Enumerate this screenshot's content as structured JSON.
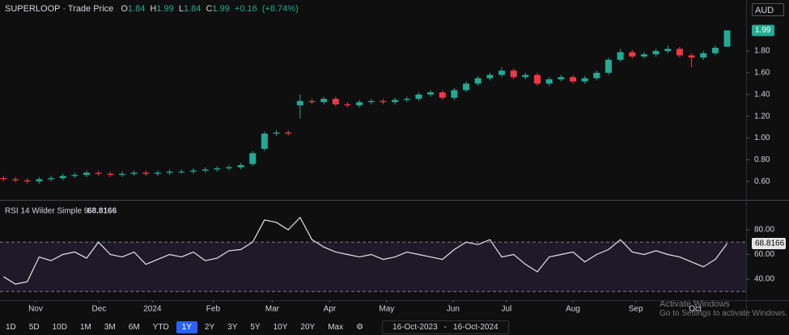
{
  "header": {
    "title": "SUPERLOOP · Trade Price",
    "o_label": "O",
    "open": 1.84,
    "h_label": "H",
    "high": 1.99,
    "l_label": "L",
    "low": 1.84,
    "c_label": "C",
    "close": 1.99,
    "change": "+0.16",
    "change_pct": "(+8.74%)"
  },
  "currency": "AUD",
  "chart_data": [
    {
      "type": "candlestick",
      "up_color": "#22ab94",
      "down_color": "#f23645",
      "xlim": [
        -0.3,
        62.6
      ],
      "ylim": [
        0.43,
        2.27
      ],
      "yticks": [
        {
          "value": 0.6,
          "label": "0.60"
        },
        {
          "value": 0.8,
          "label": "0.80"
        },
        {
          "value": 1,
          "label": "1.00"
        },
        {
          "value": 1.2,
          "label": "1.20"
        },
        {
          "value": 1.4,
          "label": "1.40"
        },
        {
          "value": 1.6,
          "label": "1.60"
        },
        {
          "value": 1.8,
          "label": "1.80"
        }
      ],
      "last_price": 1.99,
      "open": [
        0.63,
        0.62,
        0.61,
        0.6,
        0.62,
        0.63,
        0.65,
        0.66,
        0.68,
        0.67,
        0.66,
        0.67,
        0.68,
        0.67,
        0.68,
        0.69,
        0.69,
        0.7,
        0.71,
        0.72,
        0.73,
        0.76,
        0.9,
        1.04,
        1.05,
        1.3,
        1.34,
        1.33,
        1.36,
        1.31,
        1.3,
        1.33,
        1.34,
        1.33,
        1.35,
        1.36,
        1.4,
        1.42,
        1.37,
        1.44,
        1.5,
        1.55,
        1.58,
        1.62,
        1.56,
        1.58,
        1.5,
        1.54,
        1.56,
        1.52,
        1.55,
        1.6,
        1.72,
        1.79,
        1.75,
        1.77,
        1.8,
        1.82,
        1.76,
        1.74,
        1.78,
        1.84
      ],
      "high": [
        0.65,
        0.64,
        0.63,
        0.64,
        0.65,
        0.67,
        0.68,
        0.7,
        0.7,
        0.69,
        0.69,
        0.7,
        0.7,
        0.7,
        0.71,
        0.71,
        0.72,
        0.73,
        0.74,
        0.75,
        0.77,
        0.88,
        1.06,
        1.07,
        1.07,
        1.4,
        1.36,
        1.38,
        1.38,
        1.33,
        1.35,
        1.36,
        1.36,
        1.37,
        1.38,
        1.42,
        1.44,
        1.44,
        1.46,
        1.52,
        1.57,
        1.6,
        1.65,
        1.64,
        1.6,
        1.6,
        1.56,
        1.58,
        1.58,
        1.57,
        1.62,
        1.74,
        1.82,
        1.81,
        1.79,
        1.82,
        1.85,
        1.84,
        1.78,
        1.8,
        1.85,
        1.99
      ],
      "low": [
        0.6,
        0.59,
        0.58,
        0.58,
        0.6,
        0.61,
        0.63,
        0.64,
        0.65,
        0.64,
        0.64,
        0.65,
        0.65,
        0.65,
        0.66,
        0.67,
        0.67,
        0.68,
        0.69,
        0.7,
        0.71,
        0.74,
        0.88,
        1.02,
        1.02,
        1.18,
        1.31,
        1.31,
        1.29,
        1.28,
        1.28,
        1.31,
        1.31,
        1.31,
        1.33,
        1.34,
        1.38,
        1.35,
        1.35,
        1.42,
        1.48,
        1.53,
        1.56,
        1.54,
        1.54,
        1.48,
        1.48,
        1.52,
        1.5,
        1.5,
        1.53,
        1.58,
        1.7,
        1.73,
        1.73,
        1.75,
        1.78,
        1.74,
        1.65,
        1.72,
        1.76,
        1.84
      ],
      "close": [
        0.62,
        0.61,
        0.6,
        0.62,
        0.63,
        0.65,
        0.66,
        0.68,
        0.67,
        0.66,
        0.67,
        0.68,
        0.67,
        0.68,
        0.69,
        0.69,
        0.7,
        0.71,
        0.72,
        0.73,
        0.75,
        0.86,
        1.04,
        1.05,
        1.04,
        1.34,
        1.33,
        1.36,
        1.31,
        1.3,
        1.33,
        1.34,
        1.33,
        1.35,
        1.36,
        1.4,
        1.42,
        1.37,
        1.44,
        1.5,
        1.55,
        1.58,
        1.62,
        1.56,
        1.58,
        1.5,
        1.54,
        1.56,
        1.52,
        1.55,
        1.6,
        1.72,
        1.79,
        1.75,
        1.77,
        1.8,
        1.82,
        1.76,
        1.74,
        1.78,
        1.83,
        1.99
      ]
    },
    {
      "type": "line",
      "title": "RSI 14 Wilder Simple 9",
      "last_value": 68.8166,
      "color": "#e6e6e6",
      "band_color": "#7e57c2",
      "xlim": [
        -0.3,
        62.6
      ],
      "ylim": [
        23.6,
        103.6
      ],
      "levels": [
        70,
        30
      ],
      "yticks": [
        {
          "value": 40,
          "label": "40.00"
        },
        {
          "value": 60,
          "label": "60.00"
        },
        {
          "value": 80,
          "label": "80.00"
        }
      ],
      "xticks": [
        {
          "value": 2.7,
          "label": "Nov"
        },
        {
          "value": 8.05,
          "label": "Dec"
        },
        {
          "value": 12.55,
          "label": "2024"
        },
        {
          "value": 17.67,
          "label": "Feb"
        },
        {
          "value": 22.65,
          "label": "Mar"
        },
        {
          "value": 27.5,
          "label": "Apr"
        },
        {
          "value": 32.3,
          "label": "May"
        },
        {
          "value": 37.9,
          "label": "Jun"
        },
        {
          "value": 42.4,
          "label": "Jul"
        },
        {
          "value": 48,
          "label": "Aug"
        },
        {
          "value": 53.3,
          "label": "Sep"
        },
        {
          "value": 58.3,
          "label": "Oct"
        }
      ],
      "values": [
        42,
        36,
        38,
        58,
        55,
        60,
        62,
        57,
        70,
        60,
        58,
        62,
        52,
        56,
        60,
        58,
        62,
        55,
        57,
        63,
        64,
        70,
        88,
        86,
        80,
        90,
        72,
        66,
        62,
        60,
        58,
        60,
        56,
        58,
        62,
        60,
        58,
        56,
        64,
        70,
        68,
        72,
        58,
        60,
        52,
        46,
        58,
        60,
        62,
        54,
        60,
        64,
        72,
        62,
        60,
        63,
        60,
        58,
        54,
        50,
        56,
        68.8166
      ]
    }
  ],
  "toolbar": {
    "ranges": [
      "1D",
      "5D",
      "10D",
      "1M",
      "3M",
      "6M",
      "YTD",
      "1Y",
      "2Y",
      "3Y",
      "5Y",
      "10Y",
      "20Y",
      "Max"
    ],
    "selected": "1Y",
    "date_from": "16-Oct-2023",
    "date_sep": "-",
    "date_to": "16-Oct-2024"
  },
  "watermark": {
    "title": "Activate Windows",
    "text": "Go to Settings to activate Windows."
  }
}
